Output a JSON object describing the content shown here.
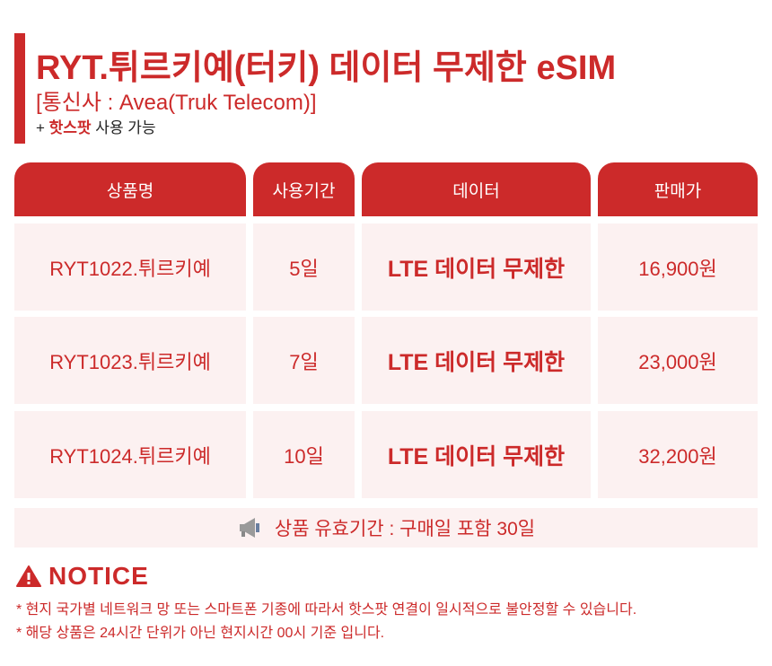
{
  "header": {
    "title": "RYT.튀르키예(터키) 데이터 무제한 eSIM",
    "carrier": "[통신사 : Avea(Truk Telecom)]",
    "hotspot_prefix": "+ ",
    "hotspot_bold": "핫스팟",
    "hotspot_suffix": " 사용 가능"
  },
  "table": {
    "columns": [
      "상품명",
      "사용기간",
      "데이터",
      "판매가"
    ],
    "rows": [
      [
        "RYT1022.튀르키예",
        "5일",
        "LTE 데이터 무제한",
        "16,900원"
      ],
      [
        "RYT1023.튀르키예",
        "7일",
        "LTE 데이터 무제한",
        "23,000원"
      ],
      [
        "RYT1024.튀르키예",
        "10일",
        "LTE 데이터 무제한",
        "32,200원"
      ]
    ]
  },
  "validity": {
    "icon": "megaphone-icon",
    "text": "상품 유효기간 : 구매일 포함 30일"
  },
  "notice": {
    "icon": "warning-icon",
    "title": "NOTICE",
    "lines": [
      "* 현지 국가별 네트워크 망 또는 스마트폰 기종에 따라서 핫스팟 연결이 일시적으로 불안정할 수 있습니다.",
      "* 해당 상품은 24시간 단위가 아닌 현지시간 00시 기준 입니다."
    ]
  },
  "colors": {
    "accent": "#cc2a2a",
    "row_bg": "#fcf1f1"
  }
}
